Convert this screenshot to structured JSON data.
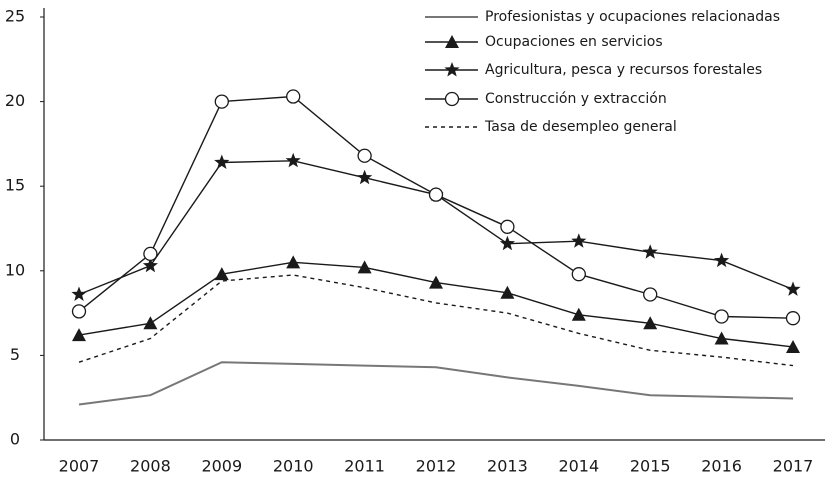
{
  "chart_data": {
    "type": "line",
    "categories": [
      "2007",
      "2008",
      "2009",
      "2010",
      "2011",
      "2012",
      "2013",
      "2014",
      "2015",
      "2016",
      "2017"
    ],
    "ylim": [
      0,
      25
    ],
    "yticks": [
      0,
      5,
      10,
      15,
      20,
      25
    ],
    "legend": "top-right",
    "series": [
      {
        "name": "Profesionistas y ocupaciones relacionadas",
        "color": "#777777",
        "marker": "none",
        "dash": false,
        "values": [
          2.1,
          2.65,
          4.6,
          4.5,
          4.4,
          4.3,
          3.7,
          3.2,
          2.65,
          2.55,
          2.45
        ]
      },
      {
        "name": "Ocupaciones en servicios",
        "color": "#1a1a1a",
        "marker": "triangle",
        "dash": false,
        "values": [
          6.2,
          6.9,
          9.8,
          10.5,
          10.2,
          9.3,
          8.7,
          7.4,
          6.9,
          6.0,
          5.5
        ]
      },
      {
        "name": "Agricultura, pesca y recursos forestales",
        "color": "#1a1a1a",
        "marker": "star",
        "dash": false,
        "values": [
          8.6,
          10.3,
          16.4,
          16.5,
          15.5,
          14.5,
          11.6,
          11.75,
          11.1,
          10.6,
          8.9
        ]
      },
      {
        "name": "Construcción y extracción",
        "color": "#1a1a1a",
        "marker": "circle",
        "dash": false,
        "values": [
          7.6,
          11.0,
          20.0,
          20.3,
          16.8,
          14.5,
          12.6,
          9.8,
          8.6,
          7.3,
          7.2
        ]
      },
      {
        "name": "Tasa de desempleo general",
        "color": "#1a1a1a",
        "marker": "none",
        "dash": true,
        "values": [
          4.6,
          6.0,
          9.4,
          9.75,
          9.0,
          8.1,
          7.5,
          6.3,
          5.3,
          4.9,
          4.4
        ]
      }
    ]
  }
}
